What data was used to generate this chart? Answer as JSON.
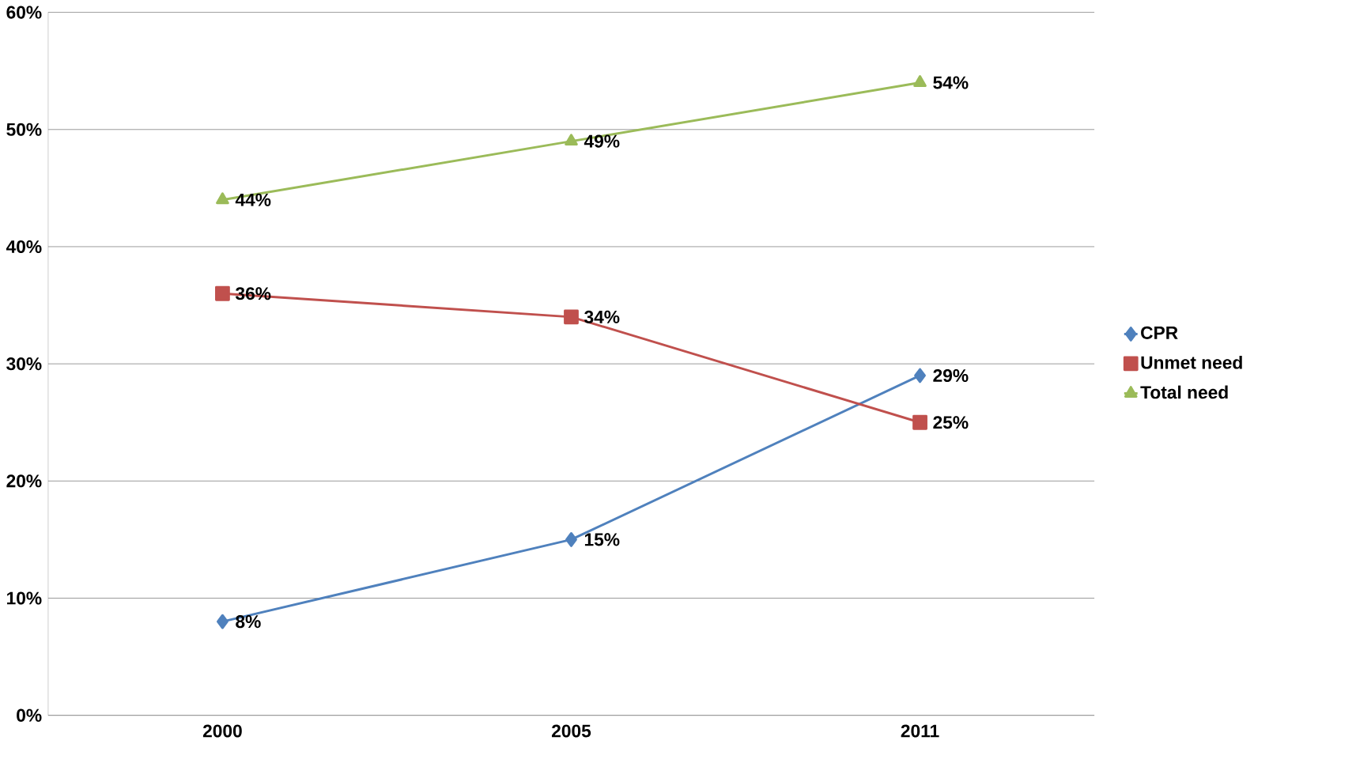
{
  "chart_data": {
    "type": "line",
    "categories": [
      "2000",
      "2005",
      "2011"
    ],
    "series": [
      {
        "name": "CPR",
        "color": "#4f81bd",
        "marker": "diamond",
        "values": [
          8,
          15,
          29
        ],
        "value_labels": [
          "8%",
          "15%",
          "29%"
        ]
      },
      {
        "name": "Unmet need",
        "color": "#c0504d",
        "marker": "square",
        "values": [
          36,
          34,
          25
        ],
        "value_labels": [
          "36%",
          "34%",
          "25%"
        ]
      },
      {
        "name": "Total need",
        "color": "#9bbb59",
        "marker": "triangle",
        "values": [
          44,
          49,
          54
        ],
        "value_labels": [
          "44%",
          "49%",
          "54%"
        ]
      }
    ],
    "ylim": [
      0,
      60
    ],
    "yticks": [
      {
        "value": 0,
        "label": "0%"
      },
      {
        "value": 10,
        "label": "10%"
      },
      {
        "value": 20,
        "label": "20%"
      },
      {
        "value": 30,
        "label": "30%"
      },
      {
        "value": 40,
        "label": "40%"
      },
      {
        "value": 50,
        "label": "50%"
      },
      {
        "value": 60,
        "label": "60%"
      }
    ],
    "grid": "y",
    "legend": "right"
  }
}
